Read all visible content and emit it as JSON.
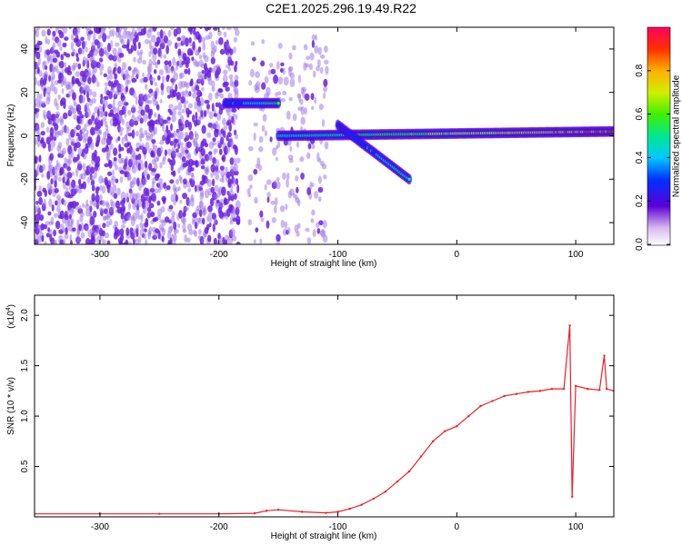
{
  "title": "C2E1.2025.296.19.49.R22",
  "colors": {
    "snr_line": "#e8202a",
    "blob_low": "#9a70e8",
    "blob_mid": "#6a20e0"
  },
  "chart_data": [
    {
      "type": "heatmap",
      "title": "C2E1.2025.296.19.49.R22",
      "xlabel": "Height of straight line (km)",
      "ylabel": "Frequency (Hz)",
      "xlim": [
        -355,
        132
      ],
      "ylim": [
        -50,
        50
      ],
      "x_ticks": [
        -300,
        -200,
        -100,
        0,
        100
      ],
      "x_tick_labels": [
        "-300",
        "-200",
        "-100",
        "0",
        "100"
      ],
      "y_ticks": [
        -40,
        -20,
        0,
        20,
        40
      ],
      "y_tick_labels": [
        "-40",
        "-20",
        "0",
        "20",
        "40"
      ],
      "colorbar": {
        "label": "Normalized spectral amplitude",
        "range": [
          0,
          1
        ],
        "ticks": [
          0.0,
          0.2,
          0.4,
          0.6,
          0.8
        ],
        "tick_labels": [
          "0.0",
          "0.2",
          "0.4",
          "0.6",
          "0.8"
        ]
      },
      "features": [
        {
          "name": "noise-region",
          "x_range": [
            -355,
            -185
          ],
          "freq_range": [
            -50,
            50
          ],
          "amplitude": 0.1
        },
        {
          "name": "noise-region-sparse",
          "x_range": [
            -175,
            -110
          ],
          "freq_range": [
            -50,
            45
          ],
          "amplitude": 0.05
        },
        {
          "name": "early-band",
          "x_range": [
            -195,
            -150
          ],
          "freq": 15,
          "amplitude": 0.55
        },
        {
          "name": "main-band",
          "x_range": [
            -150,
            132
          ],
          "freq_start": 0,
          "freq_end": 2,
          "amplitude": 0.9
        },
        {
          "name": "descending-branch",
          "x_range": [
            -100,
            -40
          ],
          "freq_start": 5,
          "freq_end": -20,
          "amplitude": 0.5
        }
      ]
    },
    {
      "type": "line",
      "title": "",
      "xlabel": "Height of straight line (km)",
      "ylabel": "SNR (10 * v/v)",
      "y_multiplier": "(x10",
      "y_multiplier_exp": "4",
      "y_multiplier_close": ")",
      "xlim": [
        -355,
        132
      ],
      "ylim": [
        0,
        2.2
      ],
      "x_ticks": [
        -300,
        -200,
        -100,
        0,
        100
      ],
      "x_tick_labels": [
        "-300",
        "-200",
        "-100",
        "0",
        "100"
      ],
      "y_ticks": [
        0.5,
        1.0,
        1.5,
        2.0
      ],
      "y_tick_labels": [
        "0.5",
        "1.0",
        "1.5",
        "2.0"
      ],
      "series": [
        {
          "name": "SNR",
          "x": [
            -355,
            -300,
            -250,
            -200,
            -170,
            -160,
            -150,
            -130,
            -110,
            -100,
            -90,
            -80,
            -70,
            -60,
            -50,
            -40,
            -30,
            -20,
            -10,
            0,
            10,
            20,
            30,
            40,
            50,
            60,
            70,
            80,
            90,
            95,
            97,
            100,
            110,
            120,
            124,
            126,
            132
          ],
          "values": [
            0.03,
            0.03,
            0.03,
            0.03,
            0.035,
            0.06,
            0.07,
            0.05,
            0.04,
            0.05,
            0.08,
            0.12,
            0.18,
            0.25,
            0.35,
            0.45,
            0.6,
            0.75,
            0.85,
            0.9,
            1.0,
            1.1,
            1.15,
            1.2,
            1.22,
            1.24,
            1.25,
            1.27,
            1.27,
            1.9,
            0.2,
            1.3,
            1.27,
            1.26,
            1.6,
            1.27,
            1.25
          ]
        }
      ]
    }
  ]
}
